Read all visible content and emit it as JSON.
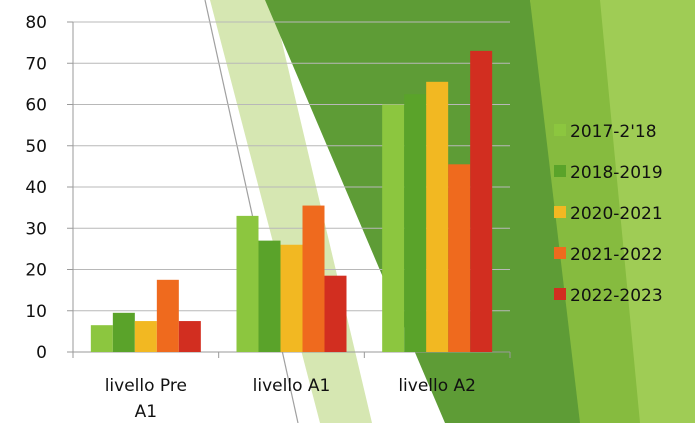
{
  "chart_data": {
    "type": "bar",
    "categories": [
      "livello Pre A1",
      "livello A1",
      "livello A2"
    ],
    "series": [
      {
        "name": "2017-2'18",
        "color": "#8cc63f",
        "values": [
          6.5,
          33,
          60
        ]
      },
      {
        "name": "2018-2019",
        "color": "#5aa32a",
        "values": [
          9.5,
          27,
          62.5
        ]
      },
      {
        "name": "2020-2021",
        "color": "#f2b822",
        "values": [
          7.5,
          26,
          65.5
        ]
      },
      {
        "name": "2021-2022",
        "color": "#ef6a1e",
        "values": [
          17.5,
          35.5,
          45.5
        ]
      },
      {
        "name": "2022-2023",
        "color": "#d22e20",
        "values": [
          7.5,
          18.5,
          73
        ]
      }
    ],
    "ylim": [
      0,
      80
    ],
    "yticks": [
      0,
      10,
      20,
      30,
      40,
      50,
      60,
      70,
      80
    ],
    "title": "",
    "xlabel": "",
    "ylabel": "",
    "grid": true,
    "legend": "right"
  },
  "background": {
    "dark_green": "#5e9c36",
    "mid_green": "#86bb3f",
    "light_green": "#9fcc55",
    "pale_green": "#d6e7b2"
  }
}
